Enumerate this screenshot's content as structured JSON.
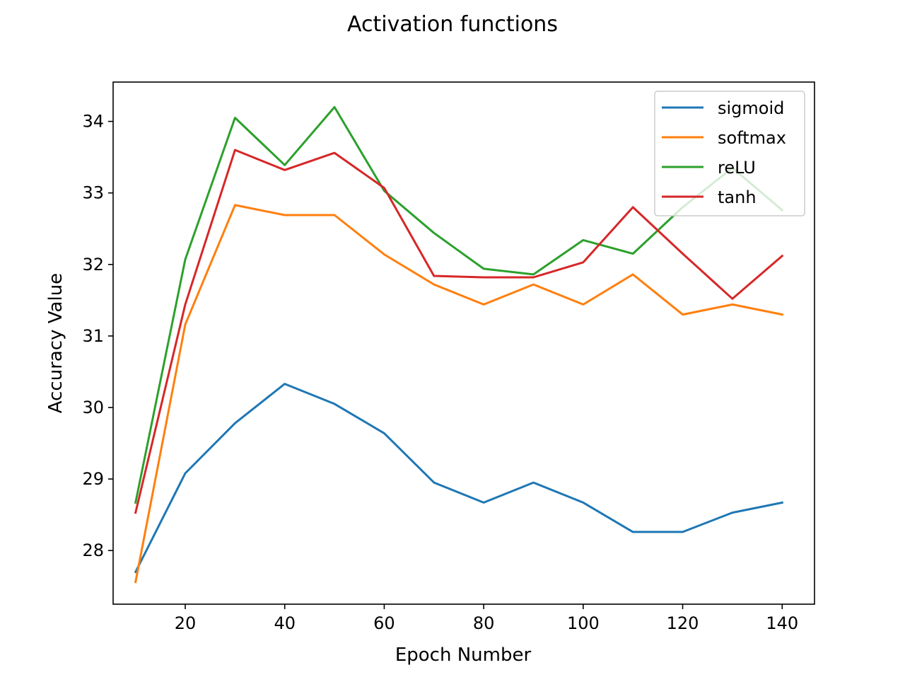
{
  "chart_data": {
    "type": "line",
    "title": "Activation functions",
    "xlabel": "Epoch Number",
    "ylabel": "Accuracy Value",
    "x": [
      10,
      20,
      30,
      40,
      50,
      60,
      70,
      80,
      90,
      100,
      110,
      120,
      130,
      140
    ],
    "xlim": [
      5.5,
      146.5
    ],
    "ylim": [
      27.25,
      34.55
    ],
    "xticks": [
      20,
      40,
      60,
      80,
      100,
      120,
      140
    ],
    "yticks": [
      28,
      29,
      30,
      31,
      32,
      33,
      34
    ],
    "xtick_labels": [
      "20",
      "40",
      "60",
      "80",
      "100",
      "120",
      "140"
    ],
    "ytick_labels": [
      "28",
      "29",
      "30",
      "31",
      "32",
      "33",
      "34"
    ],
    "grid": false,
    "legend_position": "top-right",
    "series": [
      {
        "name": "sigmoid",
        "color": "#1f77b4",
        "values": [
          27.7,
          29.08,
          29.78,
          30.33,
          30.05,
          29.64,
          28.95,
          28.67,
          28.95,
          28.67,
          28.26,
          28.26,
          28.53,
          28.67
        ]
      },
      {
        "name": "softmax",
        "color": "#ff7f0e",
        "values": [
          27.56,
          31.16,
          32.83,
          32.69,
          32.69,
          32.14,
          31.72,
          31.44,
          31.72,
          31.44,
          31.86,
          31.3,
          31.44,
          31.3
        ]
      },
      {
        "name": "reLU",
        "color": "#2ca02c",
        "values": [
          28.67,
          32.07,
          34.05,
          33.39,
          34.2,
          33.03,
          32.44,
          31.94,
          31.86,
          32.34,
          32.15,
          32.8,
          33.35,
          32.76
        ]
      },
      {
        "name": "tanh",
        "color": "#d62728",
        "values": [
          28.53,
          31.44,
          33.6,
          33.32,
          33.56,
          33.07,
          31.84,
          31.82,
          31.82,
          32.03,
          32.8,
          32.15,
          31.52,
          32.12
        ]
      }
    ]
  }
}
